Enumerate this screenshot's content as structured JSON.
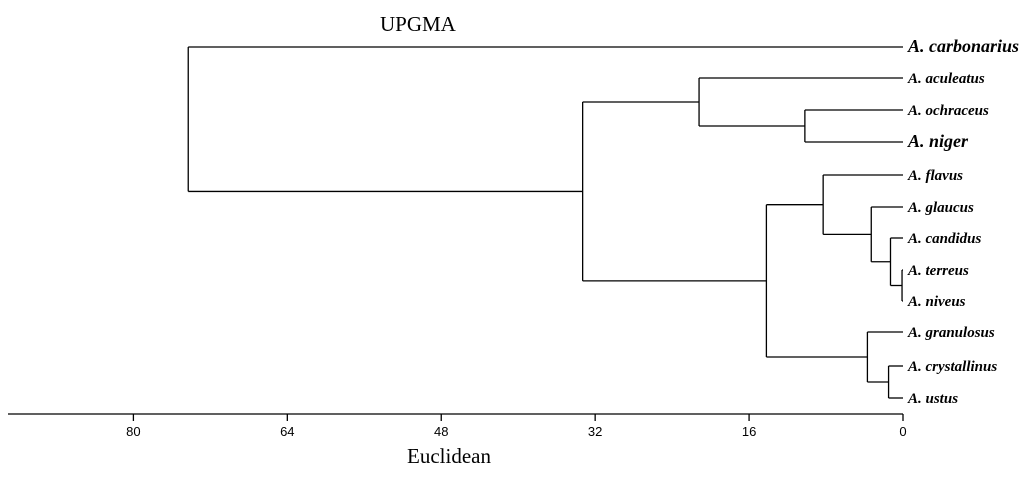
{
  "title": "UPGMA",
  "xlabel": "Euclidean",
  "axis": {
    "ticks": [
      80,
      64,
      48,
      32,
      16,
      0
    ],
    "range": [
      0,
      80
    ]
  },
  "leaves": [
    "A. carbonarius",
    "A. aculeatus",
    "A. ochraceus",
    "A. niger",
    "A. flavus",
    "A. glaucus",
    "A. candidus",
    "A. terreus",
    "A. niveus",
    "A. granulosus",
    "A. crystallinus",
    "A. ustus"
  ],
  "merges": [
    {
      "id": "n1",
      "children": [
        "A. terreus",
        "A. niveus"
      ],
      "height": 0.1
    },
    {
      "id": "n2",
      "children": [
        "A. candidus",
        "n1"
      ],
      "height": 1.3
    },
    {
      "id": "n3",
      "children": [
        "A. crystallinus",
        "A. ustus"
      ],
      "height": 1.5
    },
    {
      "id": "n4",
      "children": [
        "A. glaucus",
        "n2"
      ],
      "height": 3.3
    },
    {
      "id": "n5",
      "children": [
        "A. granulosus",
        "n3"
      ],
      "height": 3.7
    },
    {
      "id": "n6",
      "children": [
        "A. flavus",
        "n4"
      ],
      "height": 8.3
    },
    {
      "id": "n7",
      "children": [
        "A. ochraceus",
        "A. niger"
      ],
      "height": 10.2
    },
    {
      "id": "n8",
      "children": [
        "n6",
        "n5"
      ],
      "height": 14.2
    },
    {
      "id": "n9",
      "children": [
        "A. aculeatus",
        "n7"
      ],
      "height": 21.2
    },
    {
      "id": "n10",
      "children": [
        "n9",
        "n8"
      ],
      "height": 33.3
    },
    {
      "id": "n11",
      "children": [
        "A. carbonarius",
        "n10"
      ],
      "height": 74.3
    }
  ]
}
